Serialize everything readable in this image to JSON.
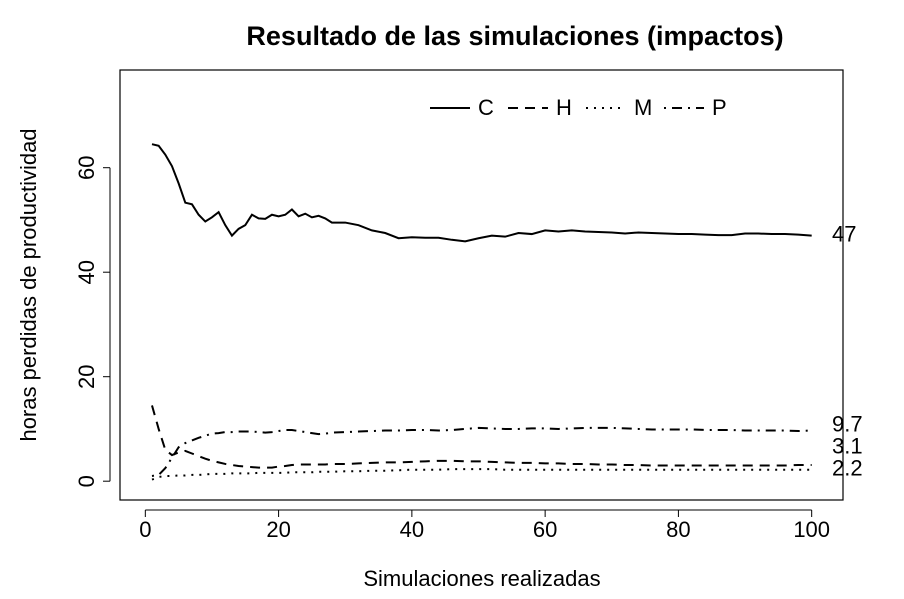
{
  "chart_data": {
    "type": "line",
    "title": "Resultado de las simulaciones (impactos)",
    "xlabel": "Simulaciones realizadas",
    "ylabel": "horas perdidas de productividad",
    "x": [
      1,
      2,
      3,
      4,
      5,
      6,
      7,
      8,
      9,
      10,
      11,
      12,
      13,
      14,
      15,
      16,
      17,
      18,
      19,
      20,
      21,
      22,
      23,
      24,
      25,
      26,
      27,
      28,
      30,
      32,
      34,
      36,
      38,
      40,
      42,
      44,
      46,
      48,
      50,
      52,
      54,
      56,
      58,
      60,
      62,
      64,
      66,
      68,
      70,
      72,
      74,
      76,
      78,
      80,
      82,
      84,
      86,
      88,
      90,
      92,
      94,
      96,
      98,
      100
    ],
    "series": [
      {
        "name": "C",
        "color": "#000000",
        "linestyle": "solid",
        "end_label": "47",
        "values": [
          64.5,
          64.2,
          62.5,
          60.3,
          57,
          53.3,
          53,
          51,
          49.7,
          50.5,
          51.5,
          49,
          47,
          48.3,
          49,
          51,
          50.3,
          50.2,
          51,
          50.7,
          51,
          52,
          50.7,
          51.2,
          50.5,
          50.8,
          50.3,
          49.5,
          49.5,
          49,
          48,
          47.5,
          46.5,
          46.7,
          46.6,
          46.6,
          46.2,
          45.9,
          46.5,
          47,
          46.8,
          47.5,
          47.3,
          48,
          47.8,
          48,
          47.8,
          47.7,
          47.6,
          47.4,
          47.6,
          47.5,
          47.4,
          47.3,
          47.3,
          47.2,
          47.1,
          47.1,
          47.4,
          47.4,
          47.3,
          47.3,
          47.2,
          47
        ]
      },
      {
        "name": "H",
        "color": "#000000",
        "linestyle": "dashed",
        "end_label": "3.1",
        "values": [
          14.5,
          10,
          6,
          5,
          5.5,
          5.8,
          5.3,
          4.8,
          4.3,
          3.9,
          3.6,
          3.3,
          3.1,
          2.9,
          2.8,
          2.7,
          2.6,
          2.6,
          2.6,
          2.8,
          2.9,
          3.1,
          3.2,
          3.2,
          3.2,
          3.2,
          3.2,
          3.3,
          3.3,
          3.4,
          3.5,
          3.6,
          3.6,
          3.7,
          3.8,
          3.9,
          3.9,
          3.8,
          3.8,
          3.7,
          3.6,
          3.5,
          3.5,
          3.4,
          3.4,
          3.3,
          3.3,
          3.2,
          3.2,
          3.1,
          3.1,
          3.0,
          3.0,
          3.0,
          3.0,
          3.0,
          3.0,
          3.0,
          3.0,
          3.0,
          3.0,
          3.0,
          3.1,
          3.1
        ]
      },
      {
        "name": "M",
        "color": "#000000",
        "linestyle": "dotted",
        "end_label": "2.2",
        "values": [
          0.3,
          0.8,
          1.0,
          1.0,
          1.1,
          1.1,
          1.2,
          1.2,
          1.3,
          1.4,
          1.4,
          1.4,
          1.5,
          1.5,
          1.5,
          1.5,
          1.6,
          1.6,
          1.6,
          1.6,
          1.6,
          1.7,
          1.7,
          1.7,
          1.7,
          1.8,
          1.8,
          1.8,
          1.9,
          1.9,
          2.0,
          2.0,
          2.1,
          2.2,
          2.2,
          2.2,
          2.3,
          2.3,
          2.3,
          2.3,
          2.2,
          2.2,
          2.2,
          2.2,
          2.2,
          2.2,
          2.2,
          2.2,
          2.2,
          2.2,
          2.2,
          2.2,
          2.2,
          2.2,
          2.2,
          2.2,
          2.2,
          2.2,
          2.2,
          2.2,
          2.2,
          2.2,
          2.2,
          2.2
        ]
      },
      {
        "name": "P",
        "color": "#000000",
        "linestyle": "dotdash",
        "end_label": "9.7",
        "values": [
          1.0,
          1.2,
          2.5,
          4.5,
          6.5,
          7.3,
          7.8,
          8.3,
          8.7,
          9.1,
          9.2,
          9.4,
          9.4,
          9.5,
          9.5,
          9.5,
          9.4,
          9.3,
          9.4,
          9.6,
          9.8,
          9.8,
          9.6,
          9.4,
          9.2,
          9.0,
          9.1,
          9.3,
          9.4,
          9.5,
          9.6,
          9.7,
          9.7,
          9.8,
          9.8,
          9.7,
          9.8,
          10.0,
          10.2,
          10.1,
          10.0,
          10.0,
          10.1,
          10.1,
          10.0,
          10.1,
          10.2,
          10.2,
          10.2,
          10.1,
          10.0,
          9.9,
          9.9,
          9.9,
          9.9,
          9.8,
          9.8,
          9.8,
          9.7,
          9.7,
          9.7,
          9.7,
          9.6,
          9.7
        ]
      }
    ],
    "xlim": [
      -3.8,
      104.7
    ],
    "xticks": [
      0,
      20,
      40,
      60,
      80,
      100
    ],
    "ylim": [
      -3.6,
      78.7
    ],
    "yticks": [
      0,
      20,
      40,
      60
    ],
    "legend": "top",
    "grid": false
  }
}
